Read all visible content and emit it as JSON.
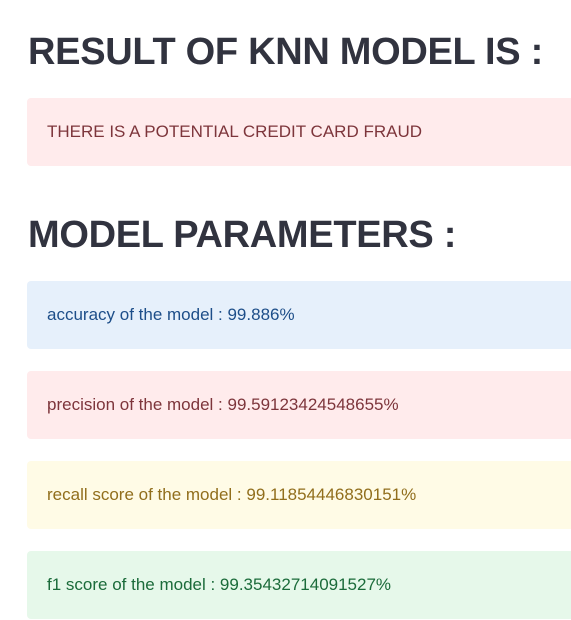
{
  "result": {
    "heading": "RESULT OF KNN MODEL IS :",
    "message": "THERE IS A POTENTIAL CREDIT CARD FRAUD"
  },
  "parameters": {
    "heading": "MODEL PARAMETERS :",
    "accuracy": "accuracy of the model : 99.886%",
    "precision": "precision of the model : 99.59123424548655%",
    "recall": "recall score of the model : 99.11854446830151%",
    "f1": "f1 score of the model : 99.35432714091527%"
  },
  "colors": {
    "heading_text": "#31333f",
    "error_bg": "#ffebec",
    "error_text": "#7d353b",
    "info_bg": "#e6f0fb",
    "info_text": "#1d4e89",
    "warning_bg": "#fffbe6",
    "warning_text": "#916e1c",
    "success_bg": "#e6f8ea",
    "success_text": "#1b6b3a"
  }
}
